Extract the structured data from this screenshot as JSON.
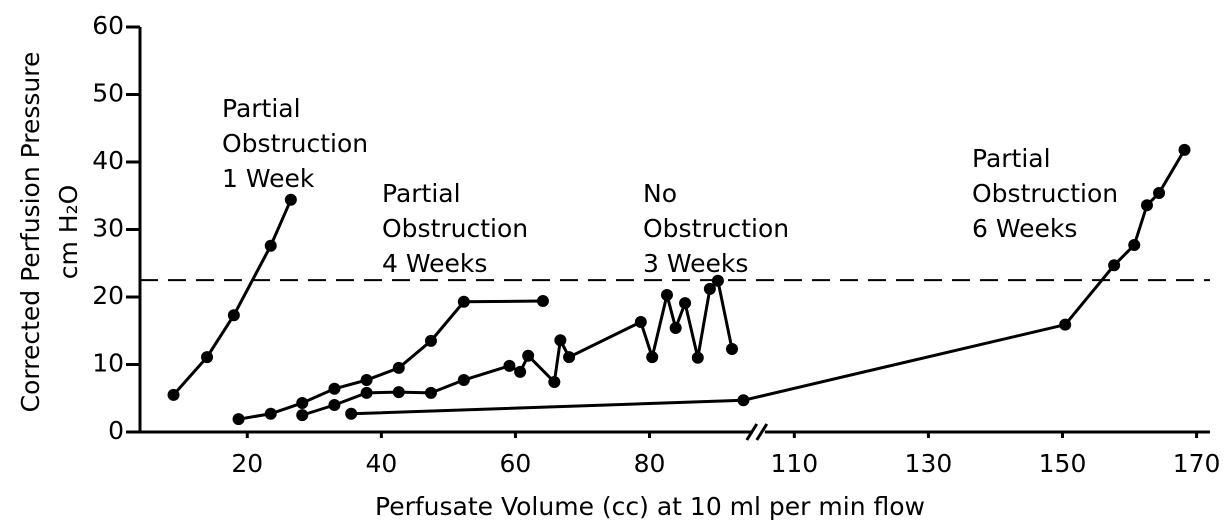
{
  "chart_data": {
    "type": "line",
    "xlabel": "Perfusate Volume (cc) at 10 ml per min flow",
    "ylabel": [
      "Corrected Perfusion Pressure",
      "cm H₂O"
    ],
    "xlim": [
      4,
      172
    ],
    "xbreak": [
      96,
      105
    ],
    "xticks": [
      20,
      40,
      60,
      80,
      110,
      130,
      150,
      170
    ],
    "ylim": [
      0,
      60
    ],
    "yticks": [
      0,
      10,
      20,
      30,
      40,
      50,
      60
    ],
    "hline": 22.5,
    "series": [
      {
        "name": [
          "Partial",
          "Obstruction",
          "1 Week"
        ],
        "color": "#000000",
        "x": [
          9,
          14,
          18,
          23.5,
          26.5
        ],
        "values": [
          5.5,
          11.1,
          17.3,
          27.6,
          34.4
        ]
      },
      {
        "name": [
          "Partial",
          "Obstruction",
          "4 Weeks"
        ],
        "color": "#000000",
        "x": [
          18.7,
          23.5,
          28.2,
          33,
          37.8,
          42.6,
          47.4,
          52.3,
          64.1
        ],
        "values": [
          1.9,
          2.7,
          4.3,
          6.4,
          7.7,
          9.5,
          13.5,
          19.3,
          19.4
        ]
      },
      {
        "name": [
          "No",
          "Obstruction",
          "3 Weeks"
        ],
        "color": "#000000",
        "x": [
          28.2,
          33,
          37.8,
          42.6,
          47.4,
          52.3,
          59.1,
          60.7,
          61.9,
          65.8,
          66.7,
          68,
          78.7,
          80.4,
          82.6,
          83.9,
          85.3,
          87.2,
          89,
          90.2,
          92.3
        ],
        "values": [
          2.5,
          4,
          5.8,
          5.9,
          5.8,
          7.7,
          9.8,
          8.9,
          11.3,
          7.4,
          13.6,
          11.1,
          16.3,
          11.1,
          20.3,
          15.4,
          19.1,
          11,
          21.2,
          22.4,
          12.3
        ]
      },
      {
        "name": [
          "Partial",
          "Obstruction",
          "6 Weeks"
        ],
        "color": "#000000",
        "x": [
          35.5,
          94,
          150.4,
          157.7,
          160.7,
          162.6,
          164.4,
          168.2
        ],
        "values": [
          2.7,
          4.7,
          15.9,
          24.7,
          27.7,
          33.6,
          35.4,
          41.8
        ]
      }
    ]
  }
}
